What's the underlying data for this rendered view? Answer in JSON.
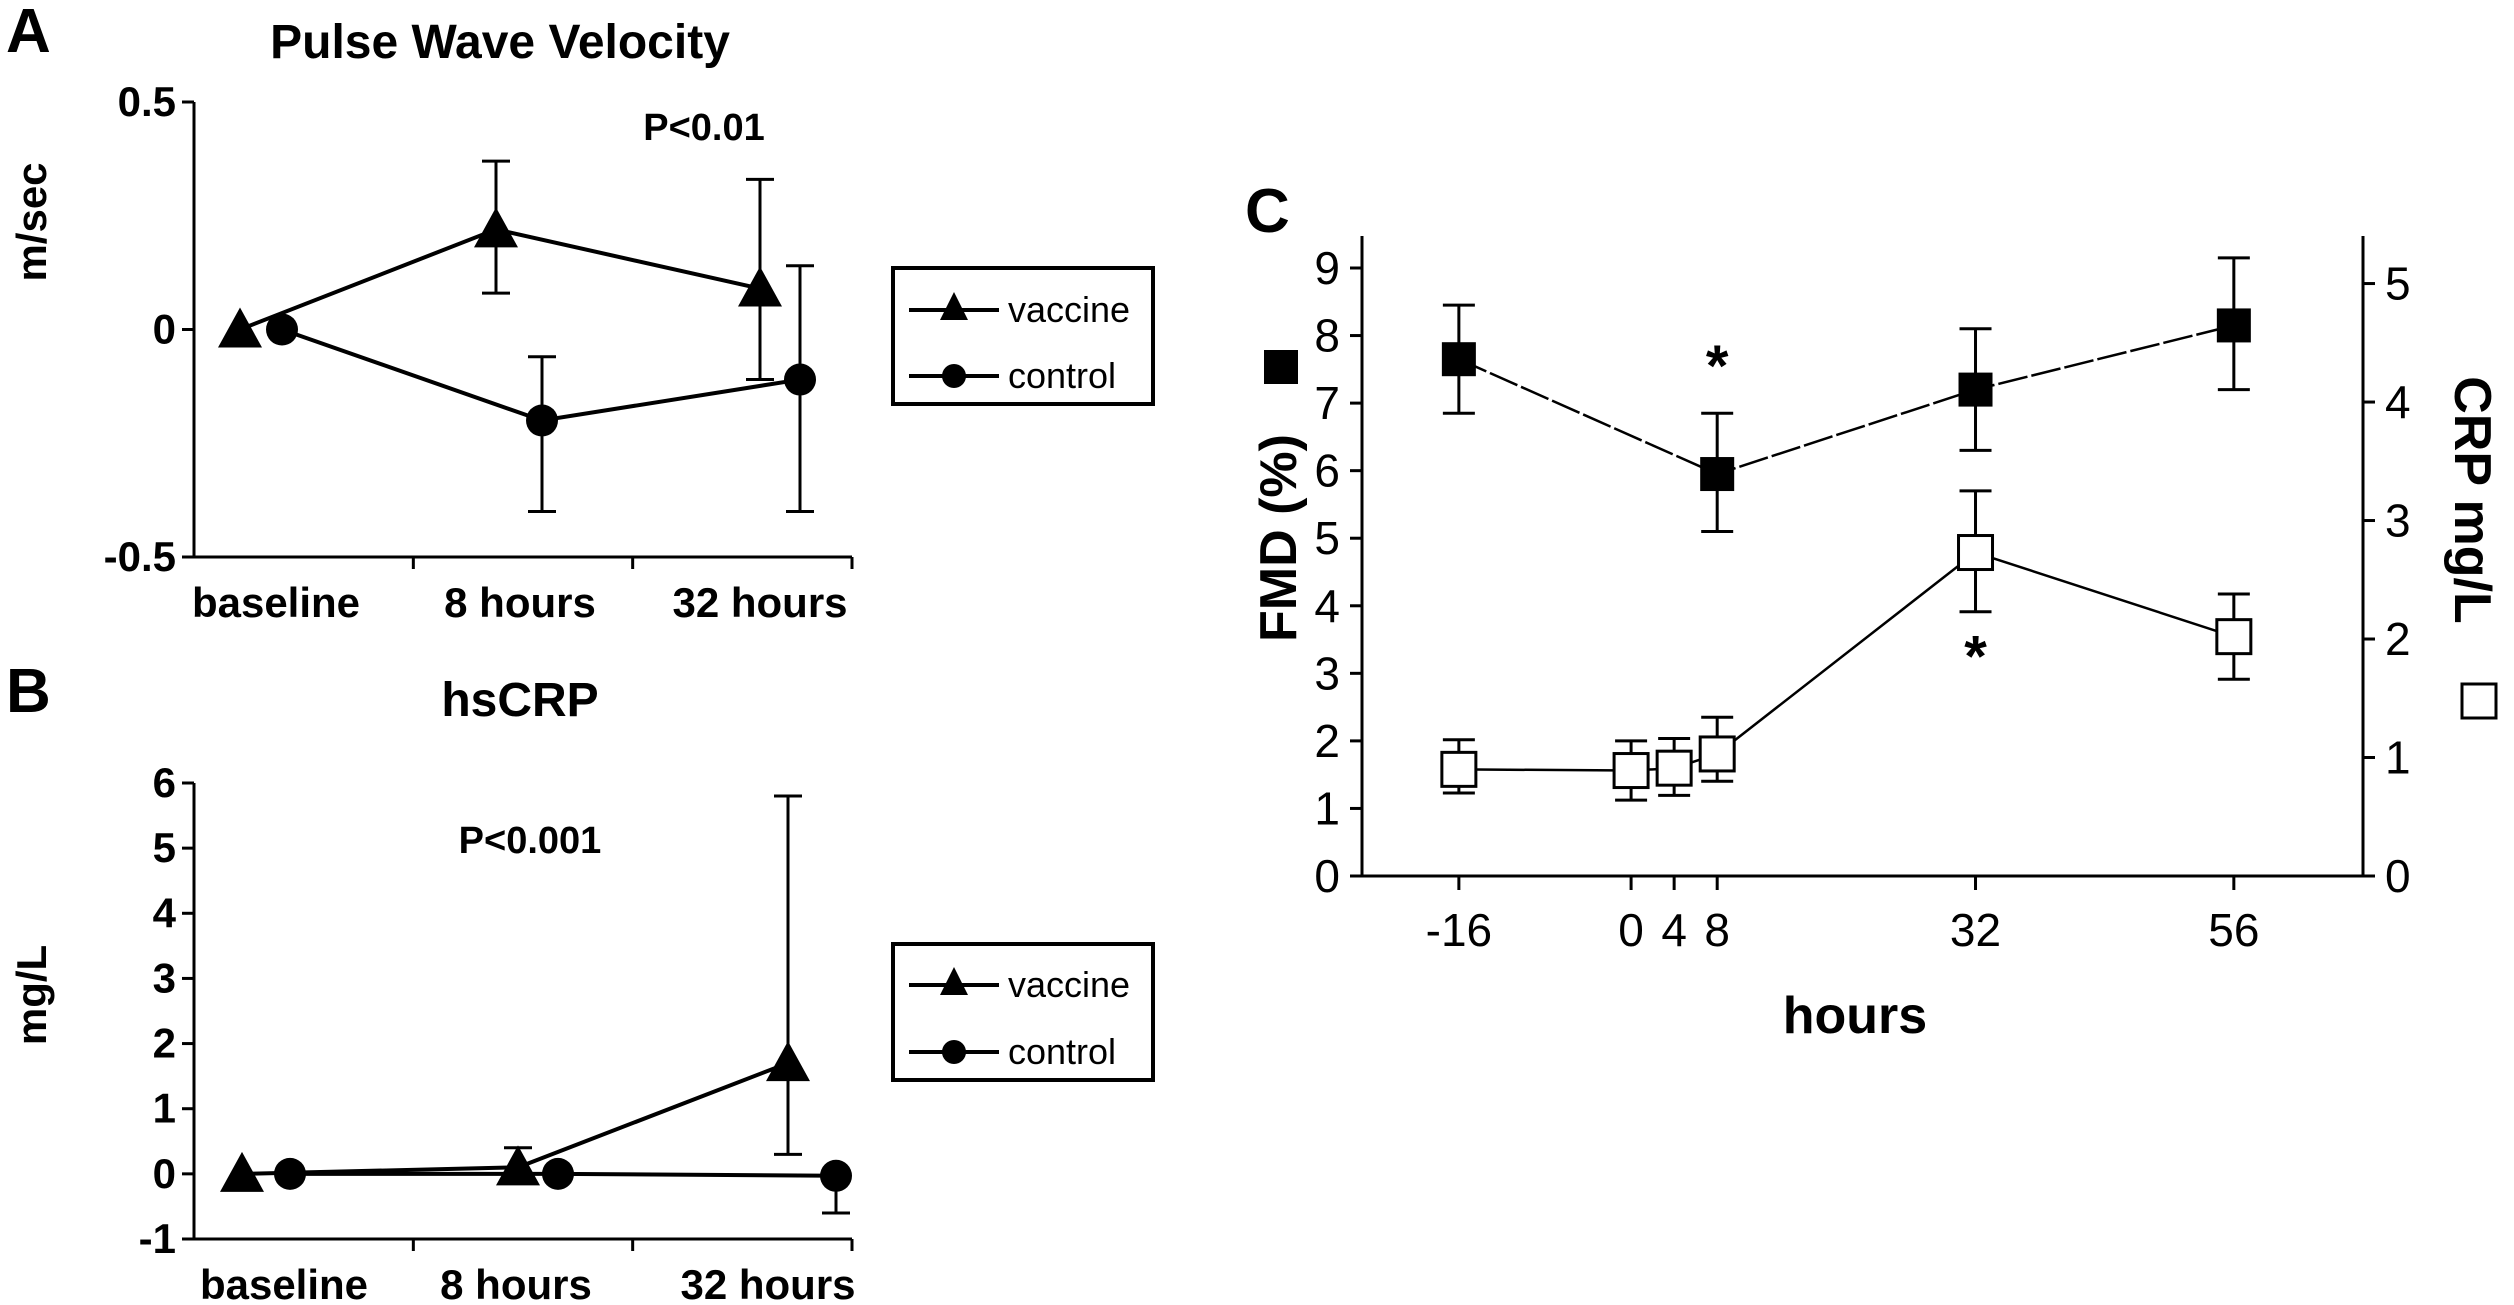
{
  "panels": {
    "A": {
      "letter": "A"
    },
    "B": {
      "letter": "B"
    },
    "C": {
      "letter": "C"
    }
  },
  "chart_data": [
    {
      "id": "A",
      "type": "line",
      "title": "Pulse Wave Velocity",
      "xlabel": "",
      "ylabel": "m/sec",
      "ylim": [
        -0.5,
        0.5
      ],
      "yticks": [
        0.5,
        0,
        -0.5
      ],
      "ytick_labels": [
        "0.5",
        "0",
        "-0.5"
      ],
      "categories": [
        "baseline",
        "8 hours",
        "32 hours"
      ],
      "annotation": "P<0.01",
      "legend": "right",
      "series": [
        {
          "name": "vaccine",
          "marker": "triangle",
          "values": [
            0,
            0.22,
            0.09
          ],
          "err_high": [
            0,
            0.37,
            0.33
          ],
          "err_low": [
            0,
            0.08,
            -0.11
          ]
        },
        {
          "name": "control",
          "marker": "circle",
          "values": [
            0,
            -0.2,
            -0.11
          ],
          "err_high": [
            0,
            -0.06,
            0.14
          ],
          "err_low": [
            0,
            -0.4,
            -0.4
          ]
        }
      ]
    },
    {
      "id": "B",
      "type": "line",
      "title": "hsCRP",
      "xlabel": "",
      "ylabel": "mg/L",
      "ylim": [
        -1,
        6
      ],
      "yticks": [
        6,
        5,
        4,
        3,
        2,
        1,
        0,
        -1
      ],
      "ytick_labels": [
        "6",
        "5",
        "4",
        "3",
        "2",
        "1",
        "0",
        "-1"
      ],
      "categories": [
        "baseline",
        "8 hours",
        "32 hours"
      ],
      "annotation": "P<0.001",
      "legend": "right",
      "series": [
        {
          "name": "vaccine",
          "marker": "triangle",
          "values": [
            0,
            0.1,
            1.7
          ],
          "err_high": [
            0,
            0.4,
            5.8
          ],
          "err_low": [
            0,
            0,
            0.3
          ]
        },
        {
          "name": "control",
          "marker": "circle",
          "values": [
            0,
            0,
            -0.03
          ],
          "err_high": [
            0,
            0,
            0
          ],
          "err_low": [
            0,
            0,
            -0.6
          ]
        }
      ]
    },
    {
      "id": "C",
      "type": "line",
      "title": "",
      "xlabel": "hours",
      "ylabel_left": "FMD (%)",
      "ylabel_right": "CRP mg/L",
      "ylim_left": [
        0,
        9
      ],
      "ylim_right": [
        0,
        5.3
      ],
      "yticks_left": [
        0,
        1,
        2,
        3,
        4,
        5,
        6,
        7,
        8,
        9
      ],
      "yticks_right": [
        0,
        1,
        2,
        3,
        4,
        5
      ],
      "xticks": [
        -16,
        0,
        4,
        8,
        32,
        56
      ],
      "xtick_labels": [
        "-16",
        "0",
        "4",
        "8",
        "32",
        "56"
      ],
      "xlim": [
        -25,
        68
      ],
      "series": [
        {
          "name": "FMD",
          "marker": "filled-square",
          "axis": "left",
          "x": [
            -16,
            8,
            32,
            56
          ],
          "values": [
            7.65,
            5.95,
            7.2,
            8.15
          ],
          "err_high": [
            8.45,
            6.85,
            8.1,
            9.15
          ],
          "err_low": [
            6.85,
            5.1,
            6.3,
            7.2
          ]
        },
        {
          "name": "CRP",
          "marker": "open-square",
          "axis": "right",
          "x": [
            -16,
            0,
            4,
            8,
            32,
            56
          ],
          "values": [
            0.9,
            0.89,
            0.91,
            1.03,
            2.73,
            2.02
          ],
          "err_high": [
            1.15,
            1.14,
            1.16,
            1.34,
            3.25,
            2.38
          ],
          "err_low": [
            0.7,
            0.64,
            0.68,
            0.8,
            2.23,
            1.66
          ]
        }
      ],
      "annotations": [
        {
          "text": "*",
          "x": 8,
          "axis": "left",
          "y": 7.7
        },
        {
          "text": "*",
          "x": 32,
          "axis": "left",
          "y": 3.4
        }
      ]
    }
  ]
}
